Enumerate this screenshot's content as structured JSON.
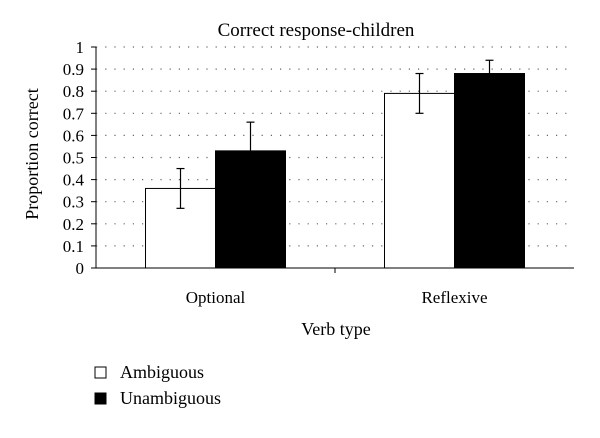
{
  "chart_data": {
    "type": "bar",
    "title": "Correct response-children",
    "xlabel": "Verb type",
    "ylabel": "Proportion correct",
    "categories": [
      "Optional",
      "Reflexive"
    ],
    "series": [
      {
        "name": "Ambiguous",
        "color": "#ffffff",
        "values": [
          0.36,
          0.79
        ],
        "error_low": [
          0.27,
          0.7
        ],
        "error_high": [
          0.45,
          0.88
        ]
      },
      {
        "name": "Unambiguous",
        "color": "#000000",
        "values": [
          0.53,
          0.88
        ],
        "error_low": [
          0.4,
          0.82
        ],
        "error_high": [
          0.66,
          0.94
        ]
      }
    ],
    "ylim": [
      0,
      1
    ],
    "yticks": [
      "0",
      "0.1",
      "0.2",
      "0.3",
      "0.4",
      "0.5",
      "0.6",
      "0.7",
      "0.8",
      "0.9",
      "1"
    ],
    "grid": "dotted-horizontal",
    "legend_position": "bottom-left"
  }
}
